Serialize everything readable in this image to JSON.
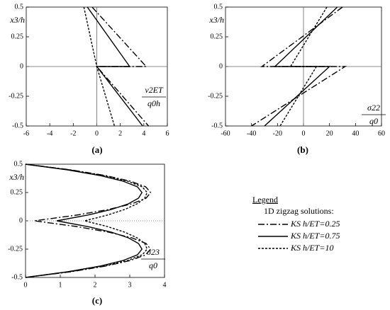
{
  "chart_data": [
    {
      "type": "line",
      "panel_label": "(a)",
      "ylabel": "x3/h",
      "xlabel_numerator": "v2ET",
      "xlabel_denominator": "q0h",
      "xlim": [
        -6,
        6
      ],
      "xticks": [
        -6,
        -4,
        -2,
        0,
        2,
        4,
        6
      ],
      "ylim": [
        -0.5,
        0.5
      ],
      "yticks": [
        -0.5,
        -0.25,
        0,
        0.25,
        0.5
      ],
      "zero_lines": true,
      "series": [
        {
          "color": "#000000",
          "dash": "9,3,2,3",
          "x": [
            -0.4,
            4.2,
            0,
            4.4
          ],
          "y": [
            0.5,
            0,
            0,
            -0.5
          ]
        },
        {
          "color": "#000000",
          "dash": "none",
          "x": [
            -0.8,
            2.8,
            0,
            3.9
          ],
          "y": [
            0.5,
            0,
            0,
            -0.5
          ]
        },
        {
          "color": "#000000",
          "dash": "3,2",
          "x": [
            -1.1,
            0,
            1.5
          ],
          "y": [
            0.5,
            0,
            -0.5
          ]
        }
      ]
    },
    {
      "type": "line",
      "panel_label": "(b)",
      "ylabel": "x3/h",
      "xlabel_numerator": "σ22",
      "xlabel_denominator": "q0",
      "xlim": [
        -60,
        60
      ],
      "xticks": [
        -60,
        -40,
        -20,
        0,
        20,
        40,
        60
      ],
      "ylim": [
        -0.5,
        0.5
      ],
      "yticks": [
        -0.5,
        -0.25,
        0,
        0.25,
        0.5
      ],
      "zero_lines": true,
      "series": [
        {
          "color": "#000000",
          "dash": "9,3,2,3",
          "x": [
            30,
            -32,
            32,
            -40
          ],
          "y": [
            0.5,
            0,
            0,
            -0.5
          ]
        },
        {
          "color": "#000000",
          "dash": "none",
          "x": [
            26,
            -22,
            20,
            -30
          ],
          "y": [
            0.5,
            0,
            0,
            -0.5
          ]
        },
        {
          "color": "#000000",
          "dash": "3,2",
          "x": [
            18,
            -10,
            10,
            -18
          ],
          "y": [
            0.5,
            0,
            0,
            -0.5
          ]
        }
      ]
    },
    {
      "type": "line",
      "panel_label": "(c)",
      "ylabel": "x3/h",
      "xlabel_numerator": "σ23",
      "xlabel_denominator": "q0",
      "xlim": [
        0,
        4
      ],
      "xticks": [
        0,
        1,
        2,
        3,
        4
      ],
      "ylim": [
        -0.5,
        0.5
      ],
      "yticks": [
        -0.5,
        -0.25,
        0,
        0.25,
        0.5
      ],
      "zero_lines": true,
      "legend_title": "Legend",
      "legend_subtitle": "1D zigzag solutions:",
      "series": [
        {
          "name": "KS h/ET=0.25",
          "color": "#000000",
          "dash": "9,3,2,3",
          "x": [
            0,
            1.3,
            2.3,
            3.02,
            3.46,
            3.6,
            3.47,
            3.06,
            2.39,
            1.46,
            0.25,
            1.46,
            2.39,
            3.06,
            3.47,
            3.6,
            3.46,
            3.02,
            2.3,
            1.3,
            0
          ],
          "y": [
            0.5,
            0.45,
            0.4,
            0.35,
            0.3,
            0.25,
            0.2,
            0.15,
            0.1,
            0.05,
            0,
            -0.05,
            -0.1,
            -0.15,
            -0.2,
            -0.25,
            -0.3,
            -0.35,
            -0.4,
            -0.45,
            -0.5
          ]
        },
        {
          "name": "KS h/ET=0.75",
          "color": "#000000",
          "dash": "none",
          "x": [
            0,
            1.21,
            2.14,
            2.81,
            3.22,
            3.35,
            3.25,
            2.96,
            2.47,
            1.78,
            0.9,
            1.78,
            2.47,
            2.96,
            3.25,
            3.35,
            3.22,
            2.81,
            2.14,
            1.21,
            0
          ],
          "y": [
            0.5,
            0.45,
            0.4,
            0.35,
            0.3,
            0.25,
            0.2,
            0.15,
            0.1,
            0.05,
            0,
            -0.05,
            -0.1,
            -0.15,
            -0.2,
            -0.25,
            -0.3,
            -0.35,
            -0.4,
            -0.45,
            -0.5
          ]
        },
        {
          "name": "KS h/ET=10",
          "color": "#000000",
          "dash": "3,2",
          "x": [
            0,
            1.26,
            2.24,
            2.94,
            3.36,
            3.5,
            3.43,
            3.21,
            2.85,
            2.35,
            1.7,
            2.35,
            2.85,
            3.21,
            3.43,
            3.5,
            3.36,
            2.94,
            2.24,
            1.26,
            0
          ],
          "y": [
            0.5,
            0.45,
            0.4,
            0.35,
            0.3,
            0.25,
            0.2,
            0.15,
            0.1,
            0.05,
            0,
            -0.05,
            -0.1,
            -0.15,
            -0.2,
            -0.25,
            -0.3,
            -0.35,
            -0.4,
            -0.45,
            -0.5
          ]
        }
      ]
    }
  ]
}
